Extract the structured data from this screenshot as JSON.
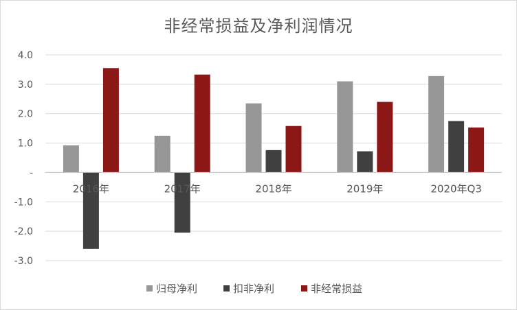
{
  "chart_data": {
    "type": "bar",
    "title": "非经常损益及净利润情况",
    "categories": [
      "2016年",
      "2017年",
      "2018年",
      "2019年",
      "2020年Q3"
    ],
    "series": [
      {
        "name": "归母净利",
        "color": "#969696",
        "values": [
          0.92,
          1.25,
          2.35,
          3.1,
          3.28
        ]
      },
      {
        "name": "扣非净利",
        "color": "#404040",
        "values": [
          -2.6,
          -2.05,
          0.76,
          0.72,
          1.75
        ]
      },
      {
        "name": "非经常损益",
        "color": "#8b1717",
        "values": [
          3.55,
          3.33,
          1.58,
          2.4,
          1.53
        ]
      }
    ],
    "ylim": [
      -3.0,
      4.0
    ],
    "yticks": [
      4.0,
      3.0,
      2.0,
      1.0,
      0,
      -1.0,
      -2.0,
      -3.0
    ],
    "ytick_labels": [
      "4.0",
      "3.0",
      "2.0",
      "1.0",
      "-",
      "-1.0",
      "-2.0",
      "-3.0"
    ],
    "xlabel": "",
    "ylabel": "",
    "grid": true,
    "legend_position": "bottom"
  }
}
